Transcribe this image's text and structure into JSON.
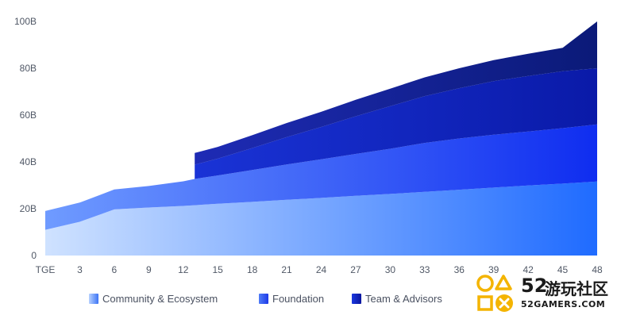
{
  "chart_data": {
    "type": "area",
    "stacked": true,
    "categories": [
      "TGE",
      "3",
      "6",
      "9",
      "12",
      "15",
      "18",
      "21",
      "24",
      "27",
      "30",
      "33",
      "36",
      "39",
      "42",
      "45",
      "48"
    ],
    "x": [
      0,
      3,
      6,
      9,
      12,
      13,
      15,
      18,
      21,
      24,
      27,
      30,
      33,
      36,
      39,
      42,
      45,
      48
    ],
    "y_tick_labels": [
      "0",
      "20B",
      "40B",
      "60B",
      "80B",
      "100B"
    ],
    "ylim": [
      0,
      100
    ],
    "grid": false,
    "legend_position": "bottom",
    "series": [
      {
        "name": "Community & Ecosystem",
        "color_light": "#cfe2ff",
        "color_dark": "#1f6bff",
        "values": [
          11,
          14.4,
          19.7,
          20.5,
          21.2,
          21.5,
          22.1,
          22.9,
          23.8,
          24.6,
          25.5,
          26.3,
          27.2,
          28.1,
          29.0,
          29.9,
          30.7,
          31.6
        ]
      },
      {
        "name": "Foundation",
        "color_light": "#6f9bff",
        "color_dark": "#0f2df0",
        "values": [
          8,
          8.2,
          8.5,
          9.2,
          10.5,
          11.2,
          12.1,
          13.6,
          15.1,
          16.5,
          17.9,
          19.3,
          20.9,
          21.9,
          22.6,
          23.1,
          23.7,
          24.4
        ]
      },
      {
        "name": "Team & Advisors",
        "color_light": "#1a33d6",
        "color_dark": "#0a1aa8",
        "values": [
          0,
          0,
          0,
          0,
          0,
          6.1,
          7.2,
          9.4,
          11.7,
          13.8,
          16.1,
          18.2,
          20.0,
          21.5,
          22.9,
          23.7,
          24.3,
          24.0
        ]
      },
      {
        "name": "",
        "color_light": "#1e2bb5",
        "color_dark": "#0b1a78",
        "values": [
          0,
          0,
          0,
          0,
          0,
          5.0,
          5.0,
          5.5,
          6.0,
          6.5,
          7.0,
          7.5,
          8.0,
          8.5,
          9.0,
          9.5,
          10.0,
          20.0
        ]
      }
    ]
  },
  "legend": [
    {
      "label": "Community & Ecosystem",
      "color": "#5b8cf5"
    },
    {
      "label": "Foundation",
      "color": "#2346f0"
    },
    {
      "label": "Team & Advisors",
      "color": "#1123b8"
    }
  ],
  "watermark": {
    "number": "52",
    "cn": "游玩社区",
    "domain": "52GAMERS.COM"
  }
}
